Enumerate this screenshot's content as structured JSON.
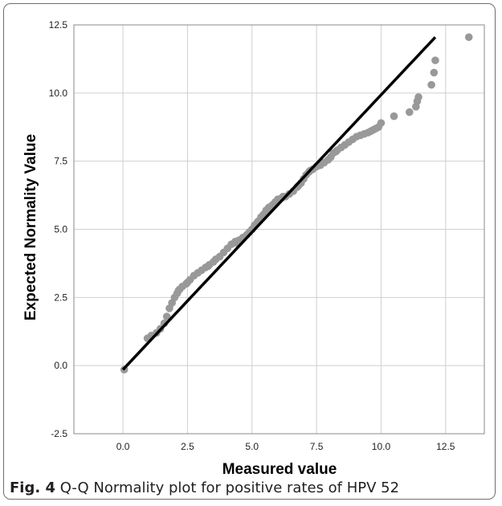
{
  "figure": {
    "caption_label": "Fig. 4",
    "caption_text": "Q-Q Normality plot for positive rates of HPV 52"
  },
  "chart_data": {
    "type": "scatter",
    "xlabel": "Measured value",
    "ylabel": "Expected Normality Value",
    "xlim": [
      -1.9,
      14.0
    ],
    "ylim": [
      -2.5,
      12.5
    ],
    "xticks": [
      "0.0",
      "2.5",
      "5.0",
      "7.5",
      "10.0",
      "12.5"
    ],
    "yticks": [
      "-2.5",
      "0.0",
      "2.5",
      "5.0",
      "7.5",
      "10.0",
      "12.5"
    ],
    "xtick_values": [
      0,
      2.5,
      5,
      7.5,
      10,
      12.5
    ],
    "ytick_values": [
      -2.5,
      0,
      2.5,
      5,
      7.5,
      10,
      12.5
    ],
    "grid": true,
    "point_color": "#999999",
    "line_color": "#000000",
    "reference_line": {
      "x": [
        0.0,
        12.1
      ],
      "y": [
        -0.15,
        12.05
      ]
    },
    "points": [
      [
        0.05,
        -0.15
      ],
      [
        0.95,
        1.0
      ],
      [
        1.1,
        1.1
      ],
      [
        1.3,
        1.2
      ],
      [
        1.45,
        1.35
      ],
      [
        1.6,
        1.55
      ],
      [
        1.7,
        1.8
      ],
      [
        1.8,
        2.1
      ],
      [
        1.9,
        2.3
      ],
      [
        2.0,
        2.5
      ],
      [
        2.1,
        2.65
      ],
      [
        2.2,
        2.8
      ],
      [
        2.3,
        2.9
      ],
      [
        2.45,
        3.0
      ],
      [
        2.6,
        3.15
      ],
      [
        2.75,
        3.3
      ],
      [
        2.9,
        3.4
      ],
      [
        3.05,
        3.5
      ],
      [
        3.2,
        3.6
      ],
      [
        3.35,
        3.7
      ],
      [
        3.5,
        3.8
      ],
      [
        3.6,
        3.9
      ],
      [
        3.75,
        4.0
      ],
      [
        3.9,
        4.15
      ],
      [
        4.05,
        4.3
      ],
      [
        4.2,
        4.45
      ],
      [
        4.35,
        4.55
      ],
      [
        4.5,
        4.6
      ],
      [
        4.65,
        4.7
      ],
      [
        4.8,
        4.8
      ],
      [
        4.9,
        4.9
      ],
      [
        5.0,
        5.0
      ],
      [
        5.1,
        5.15
      ],
      [
        5.25,
        5.3
      ],
      [
        5.35,
        5.45
      ],
      [
        5.45,
        5.55
      ],
      [
        5.55,
        5.7
      ],
      [
        5.65,
        5.8
      ],
      [
        5.8,
        5.9
      ],
      [
        5.9,
        6.0
      ],
      [
        6.0,
        6.1
      ],
      [
        6.15,
        6.15
      ],
      [
        6.3,
        6.2
      ],
      [
        6.45,
        6.3
      ],
      [
        6.6,
        6.4
      ],
      [
        6.75,
        6.55
      ],
      [
        6.9,
        6.7
      ],
      [
        7.0,
        6.85
      ],
      [
        7.1,
        7.0
      ],
      [
        7.2,
        7.1
      ],
      [
        7.35,
        7.2
      ],
      [
        7.5,
        7.3
      ],
      [
        7.65,
        7.35
      ],
      [
        7.8,
        7.45
      ],
      [
        7.95,
        7.55
      ],
      [
        8.05,
        7.65
      ],
      [
        8.15,
        7.8
      ],
      [
        8.3,
        7.9
      ],
      [
        8.45,
        8.0
      ],
      [
        8.6,
        8.1
      ],
      [
        8.75,
        8.2
      ],
      [
        8.9,
        8.3
      ],
      [
        9.05,
        8.4
      ],
      [
        9.2,
        8.45
      ],
      [
        9.35,
        8.5
      ],
      [
        9.5,
        8.55
      ],
      [
        9.6,
        8.6
      ],
      [
        9.7,
        8.65
      ],
      [
        9.8,
        8.7
      ],
      [
        9.9,
        8.75
      ],
      [
        10.0,
        8.9
      ],
      [
        10.5,
        9.15
      ],
      [
        11.1,
        9.3
      ],
      [
        11.35,
        9.5
      ],
      [
        11.4,
        9.7
      ],
      [
        11.45,
        9.85
      ],
      [
        11.95,
        10.3
      ],
      [
        12.05,
        10.75
      ],
      [
        12.1,
        11.2
      ],
      [
        13.4,
        12.05
      ],
      [
        2.15,
        2.75
      ],
      [
        2.5,
        3.05
      ],
      [
        3.3,
        3.65
      ],
      [
        4.4,
        4.5
      ],
      [
        5.2,
        5.25
      ],
      [
        5.75,
        5.85
      ],
      [
        6.2,
        6.2
      ],
      [
        6.8,
        6.6
      ],
      [
        7.25,
        7.15
      ],
      [
        8.25,
        7.85
      ]
    ]
  }
}
